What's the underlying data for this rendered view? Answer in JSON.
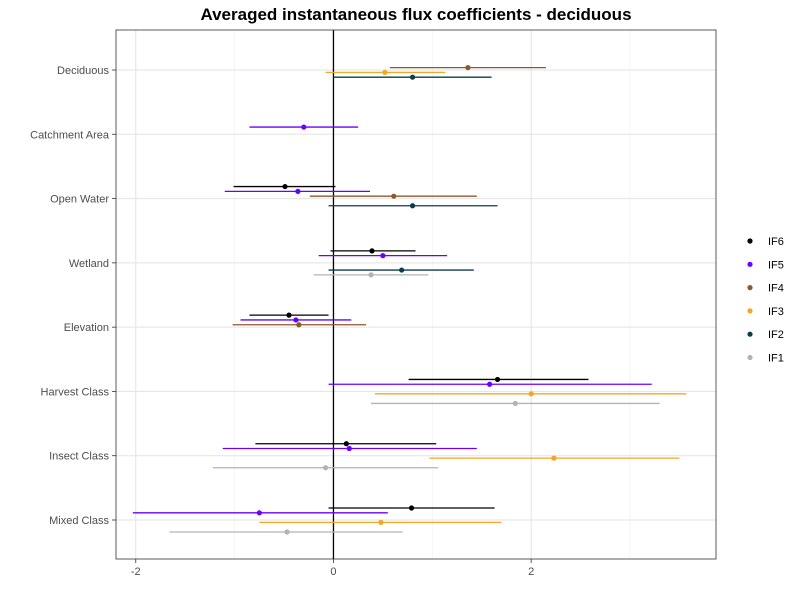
{
  "chart_data": {
    "type": "scatter",
    "subtype": "forest-plot",
    "title": "Averaged instantaneous flux coefficients - deciduous",
    "xlabel": "",
    "ylabel": "",
    "xlim": [
      -2.2,
      3.87
    ],
    "x_ticks": [
      -2,
      0,
      2
    ],
    "x_tick_labels": [
      "-2",
      "0",
      "2"
    ],
    "zero_reference_line": true,
    "grid": true,
    "legend_position": "right",
    "categories": [
      "Deciduous",
      "Catchment Area",
      "Open Water",
      "Wetland",
      "Elevation",
      "Harvest Class",
      "Insect Class",
      "Mixed Class"
    ],
    "series": [
      {
        "name": "IF6",
        "color": "#000000",
        "points": [
          {
            "category": "Open Water",
            "estimate": -0.49,
            "lower": -1.01,
            "upper": 0.02
          },
          {
            "category": "Wetland",
            "estimate": 0.39,
            "lower": -0.03,
            "upper": 0.83
          },
          {
            "category": "Elevation",
            "estimate": -0.45,
            "lower": -0.85,
            "upper": -0.05
          },
          {
            "category": "Harvest Class",
            "estimate": 1.66,
            "lower": 0.76,
            "upper": 2.58
          },
          {
            "category": "Insect Class",
            "estimate": 0.13,
            "lower": -0.79,
            "upper": 1.04
          },
          {
            "category": "Mixed Class",
            "estimate": 0.79,
            "lower": -0.05,
            "upper": 1.63
          }
        ]
      },
      {
        "name": "IF5",
        "color": "#6a00ff",
        "points": [
          {
            "category": "Catchment Area",
            "estimate": -0.3,
            "lower": -0.85,
            "upper": 0.25
          },
          {
            "category": "Open Water",
            "estimate": -0.36,
            "lower": -1.1,
            "upper": 0.37
          },
          {
            "category": "Wetland",
            "estimate": 0.5,
            "lower": -0.15,
            "upper": 1.15
          },
          {
            "category": "Elevation",
            "estimate": -0.38,
            "lower": -0.94,
            "upper": 0.18
          },
          {
            "category": "Harvest Class",
            "estimate": 1.58,
            "lower": -0.05,
            "upper": 3.22
          },
          {
            "category": "Insect Class",
            "estimate": 0.16,
            "lower": -1.12,
            "upper": 1.45
          },
          {
            "category": "Mixed Class",
            "estimate": -0.75,
            "lower": -2.03,
            "upper": 0.55
          }
        ]
      },
      {
        "name": "IF4",
        "color": "#8b5a2b",
        "points": [
          {
            "category": "Deciduous",
            "estimate": 1.36,
            "lower": 0.57,
            "upper": 2.15
          },
          {
            "category": "Open Water",
            "estimate": 0.61,
            "lower": -0.24,
            "upper": 1.45
          },
          {
            "category": "Elevation",
            "estimate": -0.35,
            "lower": -1.02,
            "upper": 0.33
          }
        ]
      },
      {
        "name": "IF3",
        "color": "#f5a623",
        "points": [
          {
            "category": "Deciduous",
            "estimate": 0.52,
            "lower": -0.08,
            "upper": 1.13
          },
          {
            "category": "Harvest Class",
            "estimate": 2.0,
            "lower": 0.42,
            "upper": 3.57
          },
          {
            "category": "Insect Class",
            "estimate": 2.23,
            "lower": 0.97,
            "upper": 3.5
          },
          {
            "category": "Mixed Class",
            "estimate": 0.48,
            "lower": -0.75,
            "upper": 1.7
          }
        ]
      },
      {
        "name": "IF2",
        "color": "#0b3d4a",
        "points": [
          {
            "category": "Deciduous",
            "estimate": 0.8,
            "lower": 0.0,
            "upper": 1.6
          },
          {
            "category": "Open Water",
            "estimate": 0.8,
            "lower": -0.05,
            "upper": 1.66
          },
          {
            "category": "Wetland",
            "estimate": 0.69,
            "lower": -0.05,
            "upper": 1.42
          }
        ]
      },
      {
        "name": "IF1",
        "color": "#b3b3b3",
        "points": [
          {
            "category": "Wetland",
            "estimate": 0.38,
            "lower": -0.2,
            "upper": 0.96
          },
          {
            "category": "Harvest Class",
            "estimate": 1.84,
            "lower": 0.38,
            "upper": 3.3
          },
          {
            "category": "Insect Class",
            "estimate": -0.08,
            "lower": -1.22,
            "upper": 1.06
          },
          {
            "category": "Mixed Class",
            "estimate": -0.47,
            "lower": -1.66,
            "upper": 0.7
          }
        ]
      }
    ]
  }
}
